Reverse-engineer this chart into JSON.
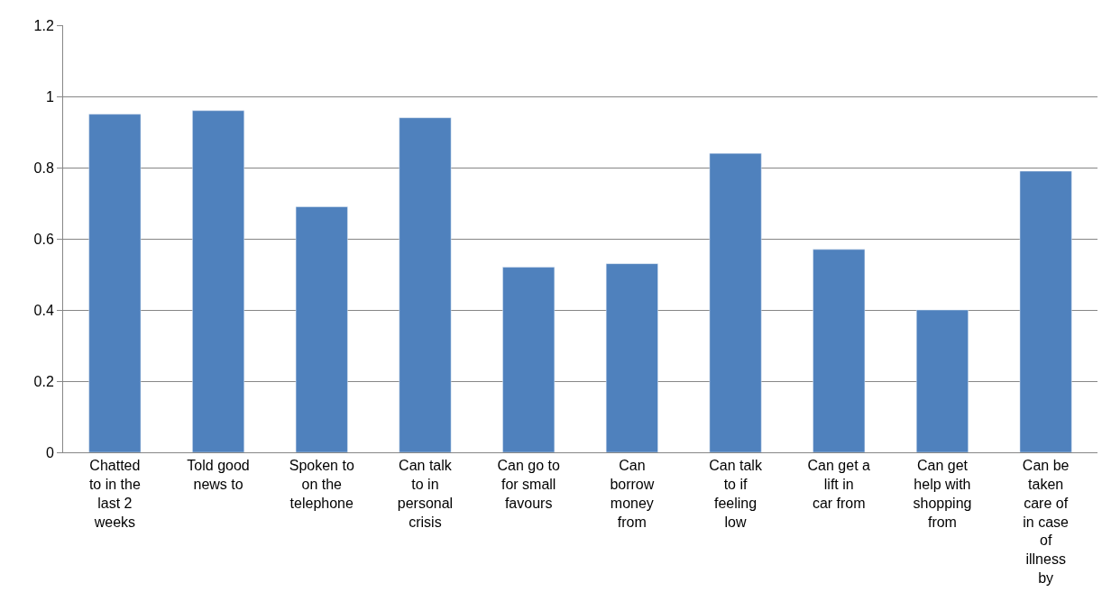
{
  "chart_data": {
    "type": "bar",
    "categories": [
      "Chatted to in the last 2 weeks",
      "Told good news to",
      "Spoken to on the telephone",
      "Can talk to in personal crisis",
      "Can go to for small favours",
      "Can borrow money from",
      "Can talk to if feeling low",
      "Can get a lift in car from",
      "Can get help with shopping from",
      "Can be taken care of in case of illness by"
    ],
    "values": [
      0.95,
      0.96,
      0.69,
      0.94,
      0.52,
      0.53,
      0.84,
      0.57,
      0.4,
      0.79
    ],
    "color": "#4f81bd",
    "ylim": [
      0,
      1.2
    ],
    "yticks": [
      0,
      0.2,
      0.4,
      0.6,
      0.8,
      1,
      1.2
    ],
    "grid": "y"
  }
}
